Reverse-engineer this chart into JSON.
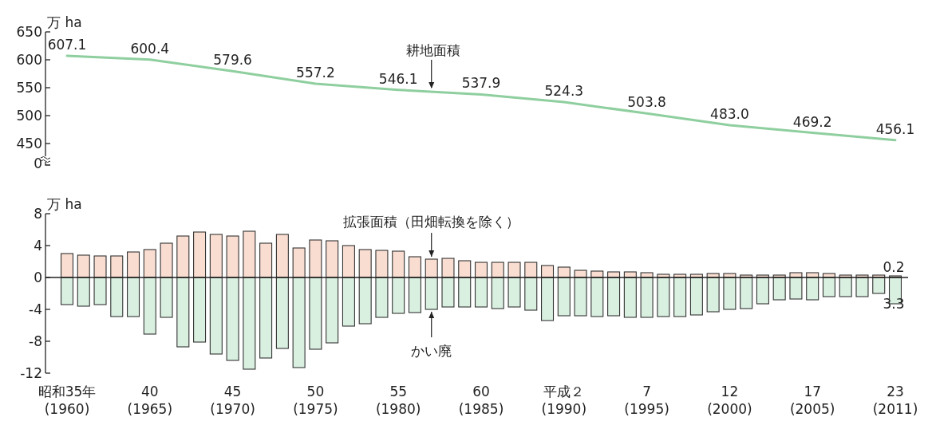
{
  "chart_data": [
    {
      "type": "line",
      "ylabel": "万 ha",
      "categories": [
        null,
        null,
        null,
        null,
        null,
        null,
        null,
        null,
        null,
        null,
        null
      ],
      "ylim": [
        450,
        650
      ],
      "yticks": [
        450,
        500,
        550,
        600,
        650
      ],
      "tick_labels": "y",
      "legend": false,
      "annotations": [
        "0"
      ],
      "series": [
        {
          "name": "耕地面積",
          "color": "#8fcf9f",
          "values": [
            607.1,
            600.4,
            579.6,
            557.2,
            546.1,
            537.9,
            524.3,
            503.8,
            483.0,
            469.2,
            456.1
          ],
          "value_labels": [
            "607.1",
            "600.4",
            "579.6",
            "557.2",
            "546.1",
            "537.9",
            "524.3",
            "503.8",
            "483.0",
            "469.2",
            "456.1"
          ]
        }
      ]
    },
    {
      "type": "bar",
      "ylabel": "万 ha",
      "stacked": true,
      "ylim": [
        -12,
        8
      ],
      "yticks": [
        -12,
        -8,
        -4,
        0,
        4,
        8
      ],
      "legend": false,
      "categories": [
        "昭和35年\n(1960)",
        null,
        null,
        null,
        null,
        "40\n(1965)",
        null,
        null,
        null,
        null,
        "45\n(1970)",
        null,
        null,
        null,
        null,
        "50\n(1975)",
        null,
        null,
        null,
        null,
        "55\n(1980)",
        null,
        null,
        null,
        null,
        "60\n(1985)",
        null,
        null,
        null,
        null,
        "平成２\n(1990)",
        null,
        null,
        null,
        null,
        "7\n(1995)",
        null,
        null,
        null,
        null,
        "12\n(2000)",
        null,
        null,
        null,
        null,
        "17\n(2005)",
        null,
        null,
        null,
        null,
        "23\n(2011)"
      ],
      "series": [
        {
          "name": "拡張面積（田畑転換を除く）",
          "color": "#f9ddd1",
          "values": [
            3.0,
            2.8,
            2.7,
            2.7,
            3.2,
            3.5,
            4.3,
            5.2,
            5.7,
            5.4,
            5.2,
            5.8,
            4.3,
            5.4,
            3.7,
            4.7,
            4.6,
            4.0,
            3.5,
            3.4,
            3.3,
            2.6,
            2.3,
            2.4,
            2.1,
            1.9,
            1.9,
            1.9,
            1.9,
            1.5,
            1.3,
            0.9,
            0.8,
            0.7,
            0.7,
            0.6,
            0.4,
            0.4,
            0.4,
            0.5,
            0.5,
            0.3,
            0.3,
            0.3,
            0.6,
            0.6,
            0.5,
            0.3,
            0.3,
            0.3,
            0.2
          ],
          "value_labels": [
            null,
            null,
            null,
            null,
            null,
            null,
            null,
            null,
            null,
            null,
            null,
            null,
            null,
            null,
            null,
            null,
            null,
            null,
            null,
            null,
            null,
            null,
            null,
            null,
            null,
            null,
            null,
            null,
            null,
            null,
            null,
            null,
            null,
            null,
            null,
            null,
            null,
            null,
            null,
            null,
            null,
            null,
            null,
            null,
            null,
            null,
            null,
            null,
            null,
            null,
            "0.2"
          ]
        },
        {
          "name": "かい廃",
          "color": "#d9f0e1",
          "values": [
            -3.4,
            -3.6,
            -3.4,
            -4.9,
            -4.9,
            -7.1,
            -5.0,
            -8.7,
            -8.1,
            -9.6,
            -10.4,
            -11.5,
            -10.1,
            -8.9,
            -11.3,
            -9.0,
            -8.2,
            -6.1,
            -5.8,
            -5.0,
            -4.5,
            -4.4,
            -4.0,
            -3.7,
            -3.7,
            -3.7,
            -3.9,
            -3.7,
            -4.1,
            -5.4,
            -4.8,
            -4.8,
            -4.9,
            -4.8,
            -5.0,
            -5.0,
            -4.9,
            -4.9,
            -4.7,
            -4.3,
            -4.0,
            -3.9,
            -3.3,
            -2.8,
            -2.7,
            -2.8,
            -2.4,
            -2.4,
            -2.4,
            -2.0,
            -3.3
          ],
          "value_labels": [
            null,
            null,
            null,
            null,
            null,
            null,
            null,
            null,
            null,
            null,
            null,
            null,
            null,
            null,
            null,
            null,
            null,
            null,
            null,
            null,
            null,
            null,
            null,
            null,
            null,
            null,
            null,
            null,
            null,
            null,
            null,
            null,
            null,
            null,
            null,
            null,
            null,
            null,
            null,
            null,
            null,
            null,
            null,
            null,
            null,
            null,
            null,
            null,
            null,
            null,
            null
          ]
        }
      ],
      "annotations": [
        {
          "text": "3.3",
          "x": "23\n(2011)",
          "y": -3.3
        }
      ]
    }
  ]
}
